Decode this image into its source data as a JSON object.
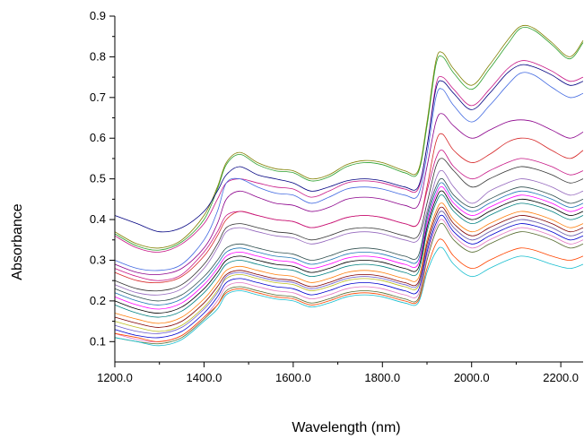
{
  "chart_data": {
    "type": "line",
    "title": "",
    "xlabel": "Wavelength (nm)",
    "ylabel": "Absorbance",
    "xlim": [
      1200,
      2250
    ],
    "ylim": [
      0.05,
      0.9
    ],
    "x_ticks": [
      "1200.0",
      "1400.0",
      "1600.0",
      "1800.0",
      "2000.0",
      "2200.0"
    ],
    "y_ticks": [
      "0.1",
      "0.2",
      "0.3",
      "0.4",
      "0.5",
      "0.6",
      "0.7",
      "0.8",
      "0.9"
    ],
    "x_tick_values": [
      1200,
      1400,
      1600,
      1800,
      2000,
      2200
    ],
    "y_tick_values": [
      0.1,
      0.2,
      0.3,
      0.4,
      0.5,
      0.6,
      0.7,
      0.8,
      0.9
    ],
    "grid": false,
    "legend": "none",
    "x": [
      1200,
      1250,
      1300,
      1350,
      1400,
      1430,
      1450,
      1480,
      1520,
      1560,
      1600,
      1640,
      1680,
      1720,
      1760,
      1800,
      1850,
      1880,
      1900,
      1920,
      1935,
      1960,
      2000,
      2040,
      2080,
      2110,
      2140,
      2180,
      2220,
      2250
    ],
    "series": [
      {
        "color": "#808000",
        "values": [
          0.37,
          0.34,
          0.33,
          0.35,
          0.41,
          0.48,
          0.54,
          0.565,
          0.54,
          0.525,
          0.52,
          0.5,
          0.51,
          0.535,
          0.545,
          0.54,
          0.52,
          0.52,
          0.64,
          0.79,
          0.81,
          0.77,
          0.73,
          0.78,
          0.84,
          0.875,
          0.87,
          0.835,
          0.8,
          0.84
        ]
      },
      {
        "color": "#2ca02c",
        "values": [
          0.365,
          0.335,
          0.325,
          0.345,
          0.4,
          0.475,
          0.535,
          0.56,
          0.535,
          0.52,
          0.515,
          0.495,
          0.505,
          0.53,
          0.54,
          0.535,
          0.515,
          0.515,
          0.63,
          0.78,
          0.8,
          0.76,
          0.72,
          0.77,
          0.83,
          0.87,
          0.865,
          0.83,
          0.795,
          0.835
        ]
      },
      {
        "color": "#c71585",
        "values": [
          0.36,
          0.33,
          0.32,
          0.34,
          0.39,
          0.45,
          0.49,
          0.5,
          0.49,
          0.48,
          0.475,
          0.455,
          0.47,
          0.49,
          0.495,
          0.49,
          0.475,
          0.475,
          0.58,
          0.73,
          0.75,
          0.72,
          0.68,
          0.72,
          0.77,
          0.79,
          0.785,
          0.765,
          0.74,
          0.75
        ]
      },
      {
        "color": "#000080",
        "values": [
          0.41,
          0.39,
          0.37,
          0.38,
          0.42,
          0.47,
          0.51,
          0.53,
          0.51,
          0.5,
          0.49,
          0.47,
          0.48,
          0.495,
          0.5,
          0.495,
          0.48,
          0.48,
          0.58,
          0.72,
          0.74,
          0.71,
          0.67,
          0.71,
          0.76,
          0.78,
          0.775,
          0.755,
          0.73,
          0.74
        ]
      },
      {
        "color": "#4169e1",
        "values": [
          0.3,
          0.28,
          0.275,
          0.29,
          0.35,
          0.42,
          0.49,
          0.5,
          0.48,
          0.465,
          0.46,
          0.44,
          0.455,
          0.475,
          0.48,
          0.475,
          0.46,
          0.46,
          0.56,
          0.7,
          0.72,
          0.68,
          0.64,
          0.68,
          0.73,
          0.76,
          0.755,
          0.725,
          0.7,
          0.71
        ]
      },
      {
        "color": "#8b008b",
        "values": [
          0.29,
          0.27,
          0.265,
          0.28,
          0.33,
          0.39,
          0.45,
          0.47,
          0.455,
          0.44,
          0.435,
          0.42,
          0.43,
          0.45,
          0.455,
          0.45,
          0.435,
          0.435,
          0.53,
          0.64,
          0.66,
          0.63,
          0.6,
          0.62,
          0.64,
          0.645,
          0.64,
          0.62,
          0.6,
          0.615
        ]
      },
      {
        "color": "#d62728",
        "values": [
          0.27,
          0.25,
          0.245,
          0.26,
          0.31,
          0.36,
          0.4,
          0.42,
          0.41,
          0.4,
          0.395,
          0.38,
          0.39,
          0.405,
          0.41,
          0.405,
          0.39,
          0.39,
          0.48,
          0.59,
          0.61,
          0.57,
          0.54,
          0.56,
          0.59,
          0.6,
          0.595,
          0.57,
          0.55,
          0.57
        ]
      },
      {
        "color": "#333333",
        "values": [
          0.25,
          0.23,
          0.225,
          0.24,
          0.29,
          0.34,
          0.38,
          0.39,
          0.38,
          0.37,
          0.365,
          0.35,
          0.36,
          0.375,
          0.38,
          0.375,
          0.36,
          0.36,
          0.44,
          0.53,
          0.55,
          0.52,
          0.48,
          0.5,
          0.52,
          0.53,
          0.525,
          0.51,
          0.49,
          0.5
        ]
      },
      {
        "color": "#9467bd",
        "values": [
          0.24,
          0.22,
          0.215,
          0.23,
          0.28,
          0.33,
          0.37,
          0.38,
          0.37,
          0.36,
          0.355,
          0.34,
          0.35,
          0.365,
          0.37,
          0.365,
          0.35,
          0.35,
          0.42,
          0.5,
          0.52,
          0.48,
          0.44,
          0.47,
          0.49,
          0.5,
          0.495,
          0.48,
          0.46,
          0.47
        ]
      },
      {
        "color": "#1f77b4",
        "values": [
          0.22,
          0.2,
          0.19,
          0.205,
          0.25,
          0.29,
          0.32,
          0.33,
          0.32,
          0.31,
          0.305,
          0.29,
          0.3,
          0.315,
          0.32,
          0.315,
          0.3,
          0.3,
          0.4,
          0.47,
          0.49,
          0.45,
          0.42,
          0.44,
          0.46,
          0.47,
          0.465,
          0.45,
          0.43,
          0.44
        ]
      },
      {
        "color": "#ff00ff",
        "values": [
          0.21,
          0.19,
          0.18,
          0.195,
          0.24,
          0.28,
          0.31,
          0.32,
          0.31,
          0.3,
          0.295,
          0.28,
          0.29,
          0.305,
          0.31,
          0.305,
          0.29,
          0.29,
          0.39,
          0.46,
          0.48,
          0.44,
          0.41,
          0.43,
          0.45,
          0.46,
          0.455,
          0.44,
          0.42,
          0.43
        ]
      },
      {
        "color": "#000000",
        "values": [
          0.2,
          0.18,
          0.17,
          0.185,
          0.23,
          0.27,
          0.3,
          0.31,
          0.3,
          0.29,
          0.285,
          0.27,
          0.28,
          0.295,
          0.3,
          0.295,
          0.28,
          0.28,
          0.38,
          0.45,
          0.47,
          0.43,
          0.4,
          0.42,
          0.44,
          0.45,
          0.445,
          0.43,
          0.41,
          0.42
        ]
      },
      {
        "color": "#008080",
        "values": [
          0.19,
          0.17,
          0.16,
          0.175,
          0.22,
          0.26,
          0.29,
          0.3,
          0.29,
          0.28,
          0.275,
          0.26,
          0.27,
          0.285,
          0.29,
          0.285,
          0.27,
          0.27,
          0.37,
          0.44,
          0.46,
          0.42,
          0.39,
          0.41,
          0.43,
          0.44,
          0.435,
          0.42,
          0.4,
          0.41
        ]
      },
      {
        "color": "#ff7f0e",
        "values": [
          0.17,
          0.155,
          0.145,
          0.16,
          0.205,
          0.245,
          0.275,
          0.285,
          0.275,
          0.265,
          0.26,
          0.245,
          0.255,
          0.27,
          0.275,
          0.27,
          0.255,
          0.255,
          0.35,
          0.42,
          0.44,
          0.4,
          0.37,
          0.39,
          0.41,
          0.42,
          0.415,
          0.4,
          0.38,
          0.39
        ]
      },
      {
        "color": "#800000",
        "values": [
          0.16,
          0.145,
          0.135,
          0.15,
          0.195,
          0.235,
          0.265,
          0.275,
          0.265,
          0.255,
          0.25,
          0.235,
          0.245,
          0.26,
          0.265,
          0.26,
          0.245,
          0.245,
          0.34,
          0.41,
          0.43,
          0.39,
          0.36,
          0.38,
          0.4,
          0.41,
          0.405,
          0.39,
          0.37,
          0.38
        ]
      },
      {
        "color": "#bcbd22",
        "values": [
          0.15,
          0.135,
          0.125,
          0.14,
          0.185,
          0.225,
          0.255,
          0.265,
          0.255,
          0.245,
          0.24,
          0.225,
          0.235,
          0.25,
          0.255,
          0.25,
          0.235,
          0.235,
          0.33,
          0.4,
          0.42,
          0.38,
          0.35,
          0.37,
          0.39,
          0.4,
          0.395,
          0.38,
          0.36,
          0.37
        ]
      },
      {
        "color": "#0000cd",
        "values": [
          0.13,
          0.115,
          0.11,
          0.125,
          0.17,
          0.21,
          0.245,
          0.255,
          0.245,
          0.235,
          0.23,
          0.215,
          0.225,
          0.24,
          0.245,
          0.24,
          0.225,
          0.225,
          0.32,
          0.39,
          0.41,
          0.37,
          0.34,
          0.36,
          0.38,
          0.39,
          0.385,
          0.37,
          0.35,
          0.36
        ]
      },
      {
        "color": "#e377c2",
        "values": [
          0.12,
          0.105,
          0.1,
          0.115,
          0.16,
          0.2,
          0.235,
          0.245,
          0.235,
          0.225,
          0.22,
          0.205,
          0.215,
          0.23,
          0.235,
          0.23,
          0.215,
          0.215,
          0.31,
          0.38,
          0.4,
          0.36,
          0.33,
          0.35,
          0.37,
          0.38,
          0.375,
          0.36,
          0.34,
          0.35
        ]
      },
      {
        "color": "#556b2f",
        "values": [
          0.11,
          0.1,
          0.095,
          0.11,
          0.155,
          0.19,
          0.225,
          0.235,
          0.225,
          0.215,
          0.21,
          0.195,
          0.205,
          0.22,
          0.225,
          0.22,
          0.205,
          0.205,
          0.3,
          0.37,
          0.39,
          0.35,
          0.32,
          0.34,
          0.36,
          0.37,
          0.365,
          0.35,
          0.33,
          0.34
        ]
      },
      {
        "color": "#17becf",
        "values": [
          0.11,
          0.1,
          0.09,
          0.105,
          0.15,
          0.18,
          0.215,
          0.225,
          0.215,
          0.205,
          0.2,
          0.185,
          0.195,
          0.21,
          0.215,
          0.21,
          0.195,
          0.195,
          0.27,
          0.32,
          0.33,
          0.29,
          0.26,
          0.28,
          0.3,
          0.31,
          0.305,
          0.29,
          0.28,
          0.29
        ]
      },
      {
        "color": "#ff4500",
        "values": [
          0.12,
          0.11,
          0.1,
          0.115,
          0.16,
          0.19,
          0.22,
          0.23,
          0.22,
          0.21,
          0.205,
          0.19,
          0.2,
          0.215,
          0.22,
          0.215,
          0.2,
          0.2,
          0.28,
          0.34,
          0.35,
          0.31,
          0.28,
          0.3,
          0.32,
          0.33,
          0.325,
          0.31,
          0.3,
          0.31
        ]
      },
      {
        "color": "#6a5acd",
        "values": [
          0.14,
          0.125,
          0.12,
          0.135,
          0.18,
          0.22,
          0.26,
          0.27,
          0.26,
          0.25,
          0.245,
          0.23,
          0.24,
          0.255,
          0.26,
          0.255,
          0.24,
          0.24,
          0.33,
          0.4,
          0.42,
          0.38,
          0.35,
          0.37,
          0.39,
          0.4,
          0.395,
          0.38,
          0.36,
          0.37
        ]
      },
      {
        "color": "#2f4f4f",
        "values": [
          0.23,
          0.21,
          0.2,
          0.215,
          0.26,
          0.3,
          0.33,
          0.34,
          0.33,
          0.32,
          0.315,
          0.3,
          0.31,
          0.325,
          0.33,
          0.325,
          0.31,
          0.31,
          0.41,
          0.48,
          0.5,
          0.46,
          0.43,
          0.45,
          0.47,
          0.48,
          0.475,
          0.46,
          0.44,
          0.45
        ]
      },
      {
        "color": "#c71585",
        "values": [
          0.28,
          0.26,
          0.25,
          0.265,
          0.32,
          0.37,
          0.41,
          0.42,
          0.41,
          0.4,
          0.395,
          0.38,
          0.39,
          0.405,
          0.41,
          0.405,
          0.39,
          0.39,
          0.47,
          0.55,
          0.57,
          0.53,
          0.5,
          0.52,
          0.54,
          0.55,
          0.545,
          0.53,
          0.51,
          0.52
        ]
      }
    ]
  }
}
